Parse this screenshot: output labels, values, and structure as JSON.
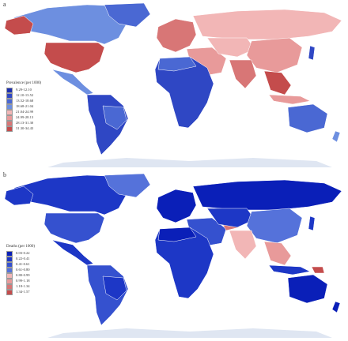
{
  "panels": [
    {
      "id": "a",
      "letter": "a",
      "legend_title": "Prevalence (per 1000)",
      "legend": [
        {
          "label": "9.29-12.10",
          "color": "#1c2fb0"
        },
        {
          "label": "12.10-13.52",
          "color": "#2f47c4"
        },
        {
          "label": "13.52-18.68",
          "color": "#4a68d3"
        },
        {
          "label": "18.68-21.04",
          "color": "#6d8fe0"
        },
        {
          "label": "21.04-24.99",
          "color": "#f2b6b6"
        },
        {
          "label": "24.99-28.13",
          "color": "#e89a9a"
        },
        {
          "label": "28.13-31.30",
          "color": "#d87676"
        },
        {
          "label": "31.30-34.43",
          "color": "#c44c4c"
        }
      ]
    },
    {
      "id": "b",
      "letter": "b",
      "legend_title": "Deaths (per 1000)",
      "legend": [
        {
          "label": "0.03-0.22",
          "color": "#0a1fb8"
        },
        {
          "label": "0.22-0.41",
          "color": "#1d37c6"
        },
        {
          "label": "0.41-0.61",
          "color": "#3551cf"
        },
        {
          "label": "0.61-0.80",
          "color": "#5572da"
        },
        {
          "label": "0.80-0.99",
          "color": "#f2b6b6"
        },
        {
          "label": "0.99-1.18",
          "color": "#e89a9a"
        },
        {
          "label": "1.18-1.34",
          "color": "#d87676"
        },
        {
          "label": "1.34-1.57",
          "color": "#c44c4c"
        }
      ]
    }
  ]
}
